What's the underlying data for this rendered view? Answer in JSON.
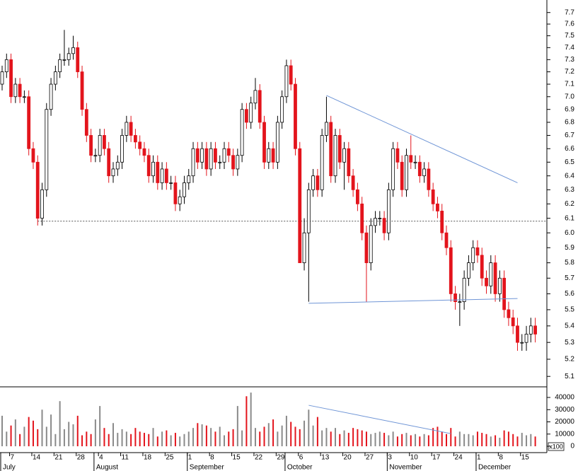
{
  "chart_data": {
    "type": "candlestick",
    "log_scale": true,
    "ylim": [
      5.04,
      7.81
    ],
    "yticks": [
      5.1,
      5.2,
      5.3,
      5.4,
      5.5,
      5.6,
      5.7,
      5.8,
      5.9,
      {
        "value": 6,
        "label": "6.0"
      },
      6.1,
      6.2,
      6.3,
      6.4,
      6.5,
      6.6,
      6.7,
      6.8,
      6.9,
      {
        "value": 7,
        "label": "7.0"
      },
      7.1,
      7.2,
      7.3,
      7.4,
      7.5,
      7.6,
      7.7
    ],
    "colors": {
      "up": "#ffffff",
      "down": "#e3141c",
      "outline": "#000000",
      "volume_up": "#8a8a8a",
      "volume_down": "#e3141c",
      "trendline": "#6f95d6"
    },
    "categories": [
      null,
      null,
      "7",
      null,
      null,
      null,
      null,
      "14",
      null,
      null,
      null,
      null,
      "21",
      null,
      null,
      null,
      null,
      "28",
      null,
      null,
      null,
      null,
      "4",
      null,
      null,
      null,
      null,
      "11",
      null,
      null,
      null,
      null,
      "18",
      null,
      null,
      null,
      null,
      "25",
      null,
      null,
      null,
      null,
      "1",
      null,
      null,
      null,
      null,
      "8",
      null,
      null,
      null,
      null,
      "15",
      null,
      null,
      null,
      null,
      "22",
      null,
      null,
      null,
      null,
      "29",
      null,
      null,
      null,
      null,
      "6",
      null,
      null,
      null,
      null,
      "13",
      null,
      null,
      null,
      null,
      "20",
      null,
      null,
      null,
      null,
      "27",
      null,
      null,
      null,
      null,
      "3",
      null,
      null,
      null,
      null,
      "10",
      null,
      null,
      null,
      null,
      "17",
      null,
      null,
      null,
      null,
      "24",
      null,
      null,
      null,
      null,
      "1",
      null,
      null,
      null,
      null,
      "8",
      null,
      null,
      null,
      null,
      "15",
      null,
      null,
      null
    ],
    "months": [
      "July",
      null,
      null,
      null,
      null,
      null,
      null,
      null,
      null,
      null,
      null,
      null,
      null,
      null,
      null,
      null,
      null,
      null,
      null,
      null,
      null,
      "August",
      null,
      null,
      null,
      null,
      null,
      null,
      null,
      null,
      null,
      null,
      null,
      null,
      null,
      null,
      null,
      null,
      null,
      null,
      null,
      null,
      "September",
      null,
      null,
      null,
      null,
      null,
      null,
      null,
      null,
      null,
      null,
      null,
      null,
      null,
      null,
      null,
      null,
      null,
      null,
      null,
      null,
      null,
      "October",
      null,
      null,
      null,
      null,
      null,
      null,
      null,
      null,
      null,
      null,
      null,
      null,
      null,
      null,
      null,
      null,
      null,
      null,
      null,
      null,
      null,
      null,
      "November",
      null,
      null,
      null,
      null,
      null,
      null,
      null,
      null,
      null,
      null,
      null,
      null,
      null,
      null,
      null,
      null,
      null,
      null,
      null,
      "December",
      null,
      null,
      null,
      null,
      null,
      null,
      null,
      null,
      null,
      null,
      null,
      null,
      null
    ],
    "open": [
      7.1,
      7.2,
      7.3,
      7.0,
      7.1,
      7.0,
      7.0,
      6.6,
      6.5,
      6.1,
      6.3,
      6.9,
      7.1,
      7.2,
      7.3,
      7.3,
      7.35,
      7.4,
      7.2,
      6.9,
      6.7,
      6.55,
      6.55,
      6.7,
      6.6,
      6.4,
      6.45,
      6.5,
      6.7,
      6.8,
      6.7,
      6.65,
      6.6,
      6.55,
      6.4,
      6.5,
      6.35,
      6.45,
      6.35,
      6.35,
      6.2,
      6.25,
      6.35,
      6.4,
      6.6,
      6.5,
      6.6,
      6.45,
      6.6,
      6.5,
      6.5,
      6.6,
      6.55,
      6.45,
      6.55,
      6.9,
      6.8,
      6.95,
      7.05,
      6.8,
      6.5,
      6.6,
      6.5,
      6.8,
      7.0,
      7.25,
      7.1,
      6.6,
      5.8,
      6.0,
      6.3,
      6.4,
      6.3,
      6.7,
      6.8,
      6.4,
      6.7,
      6.5,
      6.6,
      6.4,
      6.3,
      6.2,
      6.0,
      5.8,
      6.05,
      6.1,
      6.1,
      6.0,
      6.3,
      6.6,
      6.5,
      6.3,
      6.55,
      6.5,
      6.5,
      6.4,
      6.45,
      6.3,
      6.2,
      6.15,
      6.0,
      5.9,
      5.6,
      5.55,
      5.55,
      5.7,
      5.8,
      5.9,
      5.85,
      5.7,
      5.65,
      5.8,
      5.6,
      5.7,
      5.5,
      5.45,
      5.4,
      5.3,
      5.3,
      5.35,
      5.4
    ],
    "high": [
      7.25,
      7.35,
      7.35,
      7.15,
      7.15,
      7.05,
      7.05,
      6.65,
      6.55,
      6.35,
      6.95,
      7.15,
      7.25,
      7.35,
      7.55,
      7.4,
      7.5,
      7.45,
      7.25,
      6.95,
      6.75,
      6.6,
      6.75,
      6.75,
      6.65,
      6.5,
      6.55,
      6.75,
      6.85,
      6.85,
      6.75,
      6.7,
      6.65,
      6.6,
      6.55,
      6.55,
      6.5,
      6.5,
      6.4,
      6.4,
      6.3,
      6.4,
      6.45,
      6.65,
      6.65,
      6.65,
      6.65,
      6.65,
      6.65,
      6.55,
      6.65,
      6.65,
      6.6,
      6.6,
      6.95,
      6.95,
      7.0,
      7.15,
      7.1,
      6.85,
      6.65,
      6.65,
      6.85,
      7.05,
      7.3,
      7.3,
      7.15,
      6.65,
      6.1,
      6.35,
      6.45,
      6.45,
      6.75,
      7.0,
      6.85,
      6.75,
      6.75,
      6.65,
      6.65,
      6.45,
      6.35,
      6.25,
      6.05,
      6.1,
      6.15,
      6.15,
      6.15,
      6.35,
      6.65,
      6.65,
      6.55,
      6.6,
      6.7,
      6.55,
      6.55,
      6.5,
      6.5,
      6.35,
      6.25,
      6.2,
      6.05,
      5.95,
      5.65,
      5.6,
      5.75,
      5.85,
      5.95,
      5.95,
      5.9,
      5.75,
      5.85,
      5.85,
      5.75,
      5.75,
      5.55,
      5.5,
      5.45,
      5.35,
      5.4,
      5.45,
      5.45
    ],
    "low": [
      7.05,
      7.15,
      6.95,
      6.95,
      6.95,
      6.95,
      6.55,
      6.45,
      6.05,
      6.05,
      6.25,
      6.85,
      7.05,
      7.15,
      7.25,
      7.25,
      7.3,
      7.15,
      6.85,
      6.65,
      6.5,
      6.5,
      6.5,
      6.55,
      6.35,
      6.35,
      6.4,
      6.45,
      6.65,
      6.65,
      6.6,
      6.55,
      6.5,
      6.35,
      6.35,
      6.3,
      6.3,
      6.3,
      6.3,
      6.15,
      6.15,
      6.2,
      6.3,
      6.35,
      6.45,
      6.45,
      6.4,
      6.4,
      6.45,
      6.45,
      6.45,
      6.5,
      6.4,
      6.4,
      6.5,
      6.75,
      6.75,
      6.9,
      6.75,
      6.45,
      6.45,
      6.45,
      6.45,
      6.75,
      6.95,
      7.05,
      6.55,
      5.8,
      5.75,
      5.55,
      6.25,
      6.25,
      6.25,
      6.65,
      6.35,
      6.35,
      6.45,
      6.3,
      6.35,
      6.25,
      6.15,
      5.95,
      5.55,
      5.75,
      6.0,
      6.05,
      5.95,
      5.95,
      6.25,
      6.45,
      6.25,
      6.25,
      6.45,
      6.45,
      6.35,
      6.35,
      6.25,
      6.15,
      6.1,
      5.95,
      5.85,
      5.55,
      5.5,
      5.4,
      5.5,
      5.65,
      5.75,
      5.8,
      5.65,
      5.6,
      5.6,
      5.55,
      5.55,
      5.45,
      5.4,
      5.35,
      5.25,
      5.25,
      5.25,
      5.3,
      5.3
    ],
    "close": [
      7.2,
      7.3,
      7.0,
      7.1,
      7.0,
      7.0,
      6.6,
      6.5,
      6.1,
      6.3,
      6.9,
      7.1,
      7.2,
      7.3,
      7.3,
      7.35,
      7.4,
      7.2,
      6.9,
      6.7,
      6.55,
      6.55,
      6.7,
      6.6,
      6.4,
      6.45,
      6.5,
      6.7,
      6.8,
      6.7,
      6.65,
      6.6,
      6.55,
      6.4,
      6.5,
      6.35,
      6.45,
      6.35,
      6.35,
      6.2,
      6.25,
      6.35,
      6.4,
      6.6,
      6.5,
      6.6,
      6.45,
      6.6,
      6.5,
      6.5,
      6.6,
      6.55,
      6.45,
      6.55,
      6.9,
      6.8,
      6.95,
      7.05,
      6.8,
      6.5,
      6.6,
      6.5,
      6.8,
      7.0,
      7.25,
      7.1,
      6.6,
      5.8,
      6.0,
      6.3,
      6.4,
      6.3,
      6.7,
      6.8,
      6.4,
      6.7,
      6.5,
      6.6,
      6.4,
      6.3,
      6.2,
      6.0,
      5.8,
      6.05,
      6.1,
      6.1,
      6.0,
      6.3,
      6.6,
      6.5,
      6.3,
      6.55,
      6.5,
      6.5,
      6.4,
      6.45,
      6.3,
      6.2,
      6.15,
      6.0,
      5.9,
      5.6,
      5.55,
      5.55,
      5.7,
      5.8,
      5.9,
      5.85,
      5.7,
      5.65,
      5.8,
      5.6,
      5.7,
      5.5,
      5.45,
      5.4,
      5.3,
      5.3,
      5.35,
      5.4,
      5.35
    ],
    "reference_line": {
      "value": 6.08,
      "from": 8
    },
    "trendlines": [
      {
        "from": [
          73,
          7.01
        ],
        "to": [
          116,
          6.35
        ]
      },
      {
        "from": [
          69,
          5.54
        ],
        "to": [
          116,
          5.57
        ]
      }
    ],
    "volume": {
      "ylim": [
        -5200,
        48700
      ],
      "yticks": [
        0,
        10000,
        20000,
        30000,
        40000
      ],
      "unit_label": "x100",
      "values": [
        25000,
        12000,
        17000,
        22000,
        10000,
        16000,
        24000,
        21000,
        14000,
        30000,
        16000,
        26000,
        10000,
        37000,
        14000,
        20000,
        18000,
        25000,
        9000,
        12000,
        10000,
        22000,
        33000,
        15000,
        10000,
        19000,
        11000,
        14000,
        12000,
        10000,
        15000,
        12000,
        11000,
        10000,
        15000,
        8000,
        12000,
        13000,
        9000,
        11000,
        8000,
        10000,
        12000,
        15000,
        19000,
        18000,
        17000,
        15000,
        12000,
        16000,
        9000,
        12000,
        14000,
        33000,
        13000,
        41000,
        44000,
        15000,
        12000,
        16000,
        19000,
        22000,
        12000,
        17000,
        25000,
        20000,
        16000,
        14000,
        21000,
        30000,
        17000,
        24000,
        13000,
        15000,
        12000,
        15000,
        10000,
        13000,
        11000,
        15000,
        14000,
        13000,
        12000,
        10000,
        11000,
        12000,
        11000,
        9000,
        12000,
        8000,
        10000,
        11000,
        9000,
        10000,
        8000,
        10000,
        9000,
        15000,
        16000,
        12000,
        10000,
        15000,
        8000,
        12000,
        10000,
        10000,
        9000,
        12000,
        11000,
        10000,
        8000,
        9000,
        7000,
        13000,
        12000,
        10000,
        8000,
        11000,
        9000,
        10000,
        8000
      ],
      "trendline": {
        "from": [
          69,
          33600
        ],
        "to": [
          101,
          10400
        ]
      }
    }
  }
}
